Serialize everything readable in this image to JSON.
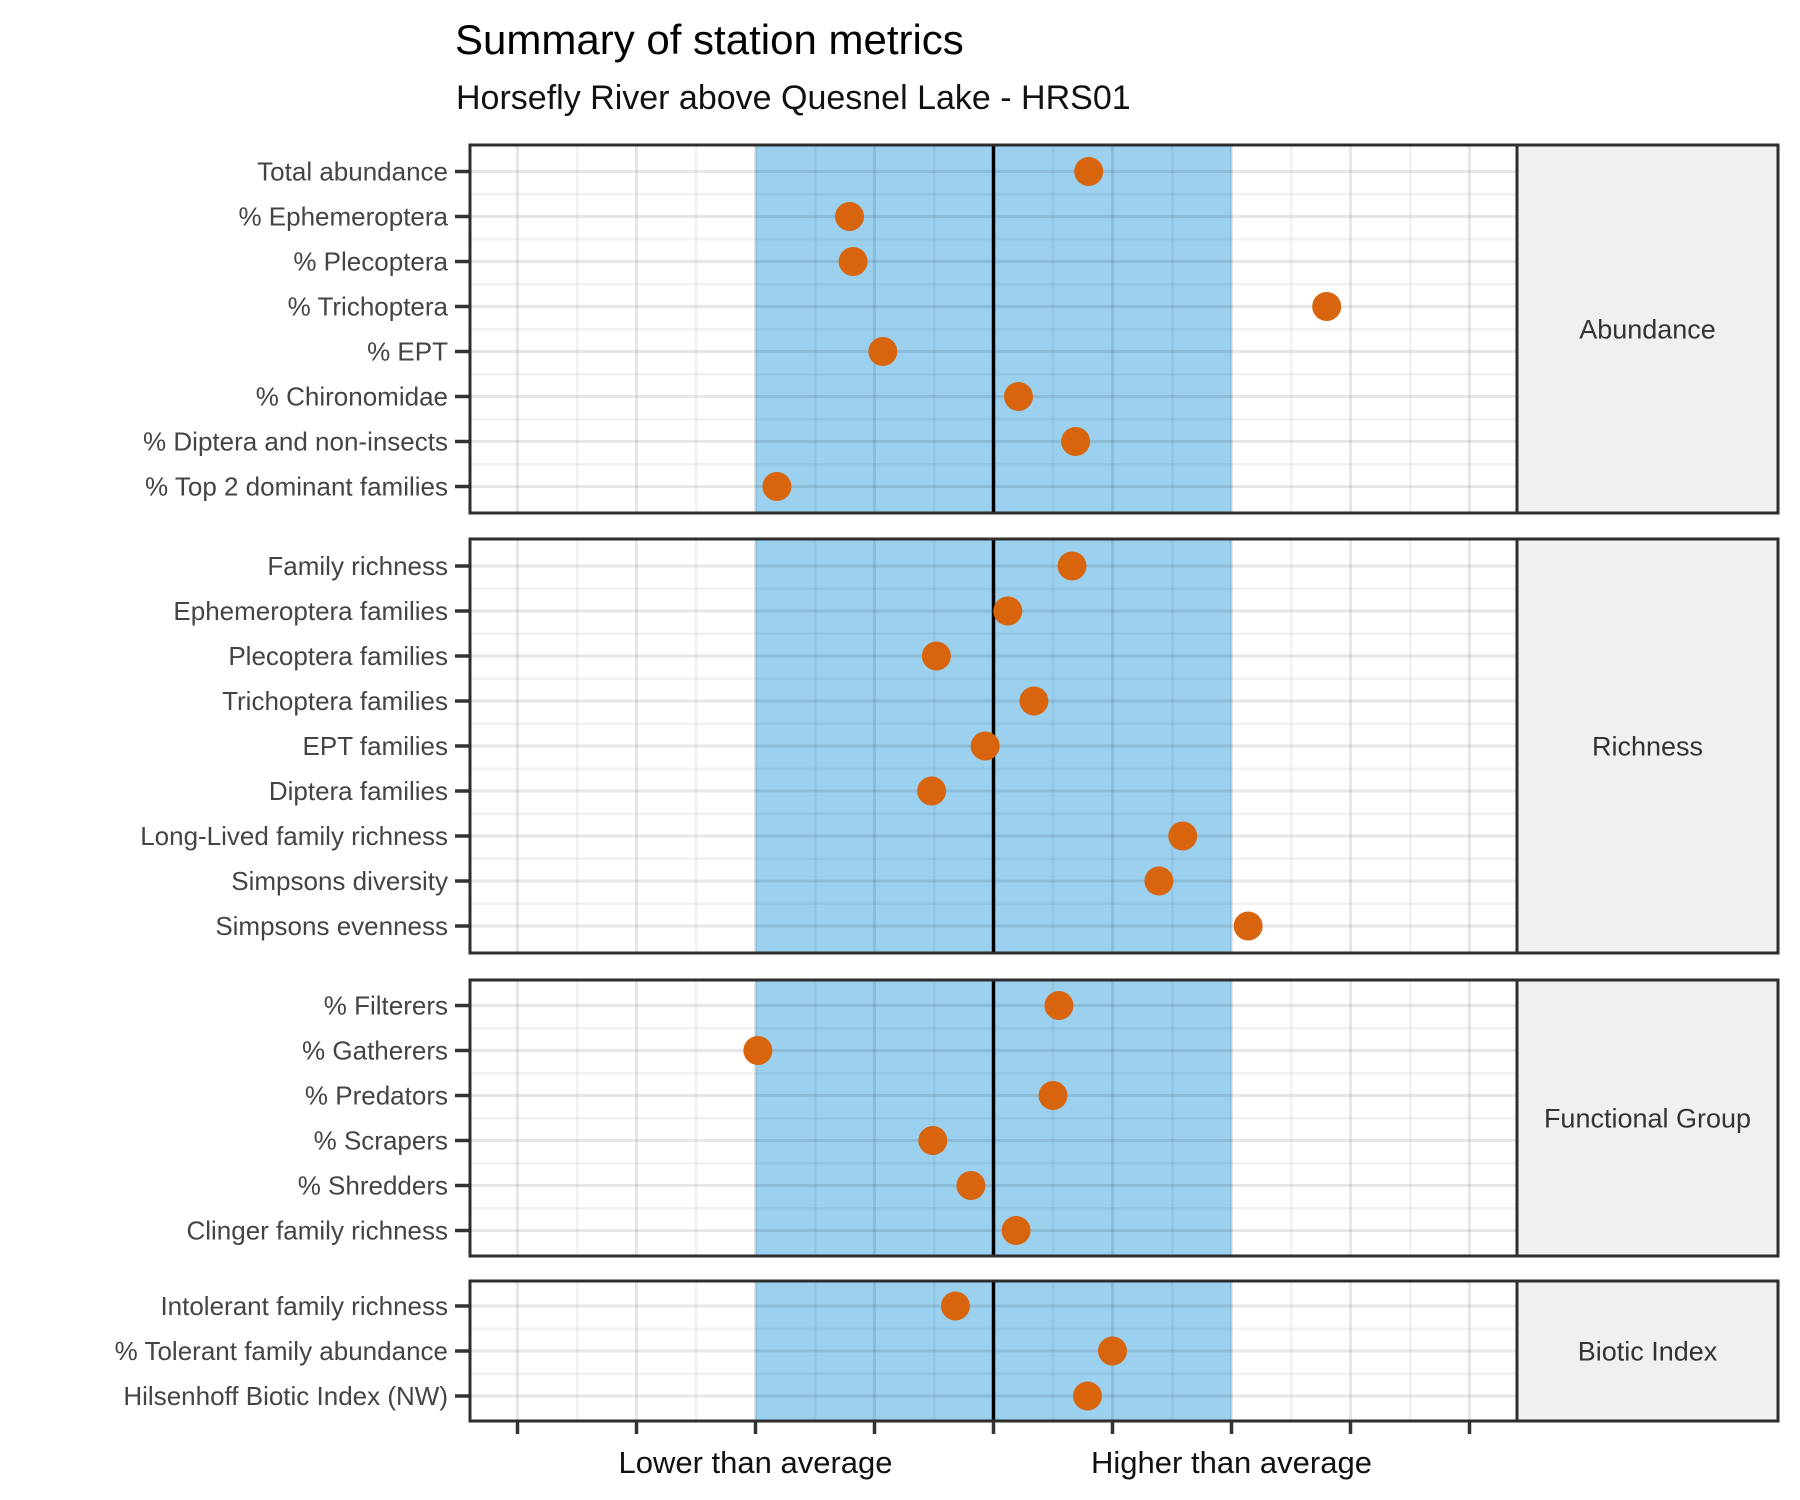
{
  "chart_data": {
    "type": "scatter",
    "title": "Summary of station metrics",
    "subtitle": "Horsefly River above Quesnel Lake - HRS01",
    "orientation": "dot-plot, one dot per metric row, faceted by metric group",
    "x_axis": {
      "range": [
        -4.4,
        4.4
      ],
      "tick_positions": [
        -4,
        -3,
        -2,
        -1,
        0,
        1,
        2,
        3,
        4
      ],
      "labeled_ticks": [
        {
          "pos": -2,
          "label": "Lower than average"
        },
        {
          "pos": 2,
          "label": "Higher than average"
        }
      ],
      "reference_band": {
        "from": -2,
        "to": 2
      },
      "reference_line_at": 0,
      "grid": "major and minor vertical and horizontal gridlines"
    },
    "colors": {
      "point": "#D8640D",
      "band": "#9BD1EF",
      "reference_line": "#000000",
      "panel_border": "#2E2E2E",
      "strip_fill": "#F0F0F0",
      "strip_text": "#333333",
      "axis_text": "#444444",
      "x_label_text": "#111111",
      "grid_major": "rgba(0,0,0,0.095)",
      "grid_minor": "rgba(0,0,0,0.05)"
    },
    "facets": [
      {
        "label": "Abundance",
        "metrics": [
          {
            "name": "Total abundance",
            "value": 0.8
          },
          {
            "name": "% Ephemeroptera",
            "value": -1.21
          },
          {
            "name": "% Plecoptera",
            "value": -1.18
          },
          {
            "name": "% Trichoptera",
            "value": 2.8
          },
          {
            "name": "% EPT",
            "value": -0.93
          },
          {
            "name": "% Chironomidae",
            "value": 0.21
          },
          {
            "name": "% Diptera and non-insects",
            "value": 0.69
          },
          {
            "name": "% Top 2 dominant families",
            "value": -1.82
          }
        ]
      },
      {
        "label": "Richness",
        "metrics": [
          {
            "name": "Family richness",
            "value": 0.66
          },
          {
            "name": "Ephemeroptera families",
            "value": 0.12
          },
          {
            "name": "Plecoptera families",
            "value": -0.48
          },
          {
            "name": "Trichoptera families",
            "value": 0.34
          },
          {
            "name": "EPT families",
            "value": -0.07
          },
          {
            "name": "Diptera families",
            "value": -0.52
          },
          {
            "name": "Long-Lived family richness",
            "value": 1.59
          },
          {
            "name": "Simpsons diversity",
            "value": 1.39
          },
          {
            "name": "Simpsons evenness",
            "value": 2.14
          }
        ]
      },
      {
        "label": "Functional Group",
        "metrics": [
          {
            "name": "% Filterers",
            "value": 0.55
          },
          {
            "name": "% Gatherers",
            "value": -1.98
          },
          {
            "name": "% Predators",
            "value": 0.5
          },
          {
            "name": "% Scrapers",
            "value": -0.51
          },
          {
            "name": "% Shredders",
            "value": -0.19
          },
          {
            "name": "Clinger family richness",
            "value": 0.19
          }
        ]
      },
      {
        "label": "Biotic Index",
        "metrics": [
          {
            "name": "Intolerant family richness",
            "value": -0.32
          },
          {
            "name": "% Tolerant family abundance",
            "value": 1.0
          },
          {
            "name": "Hilsenhoff Biotic Index (NW)",
            "value": 0.79
          }
        ]
      }
    ]
  }
}
